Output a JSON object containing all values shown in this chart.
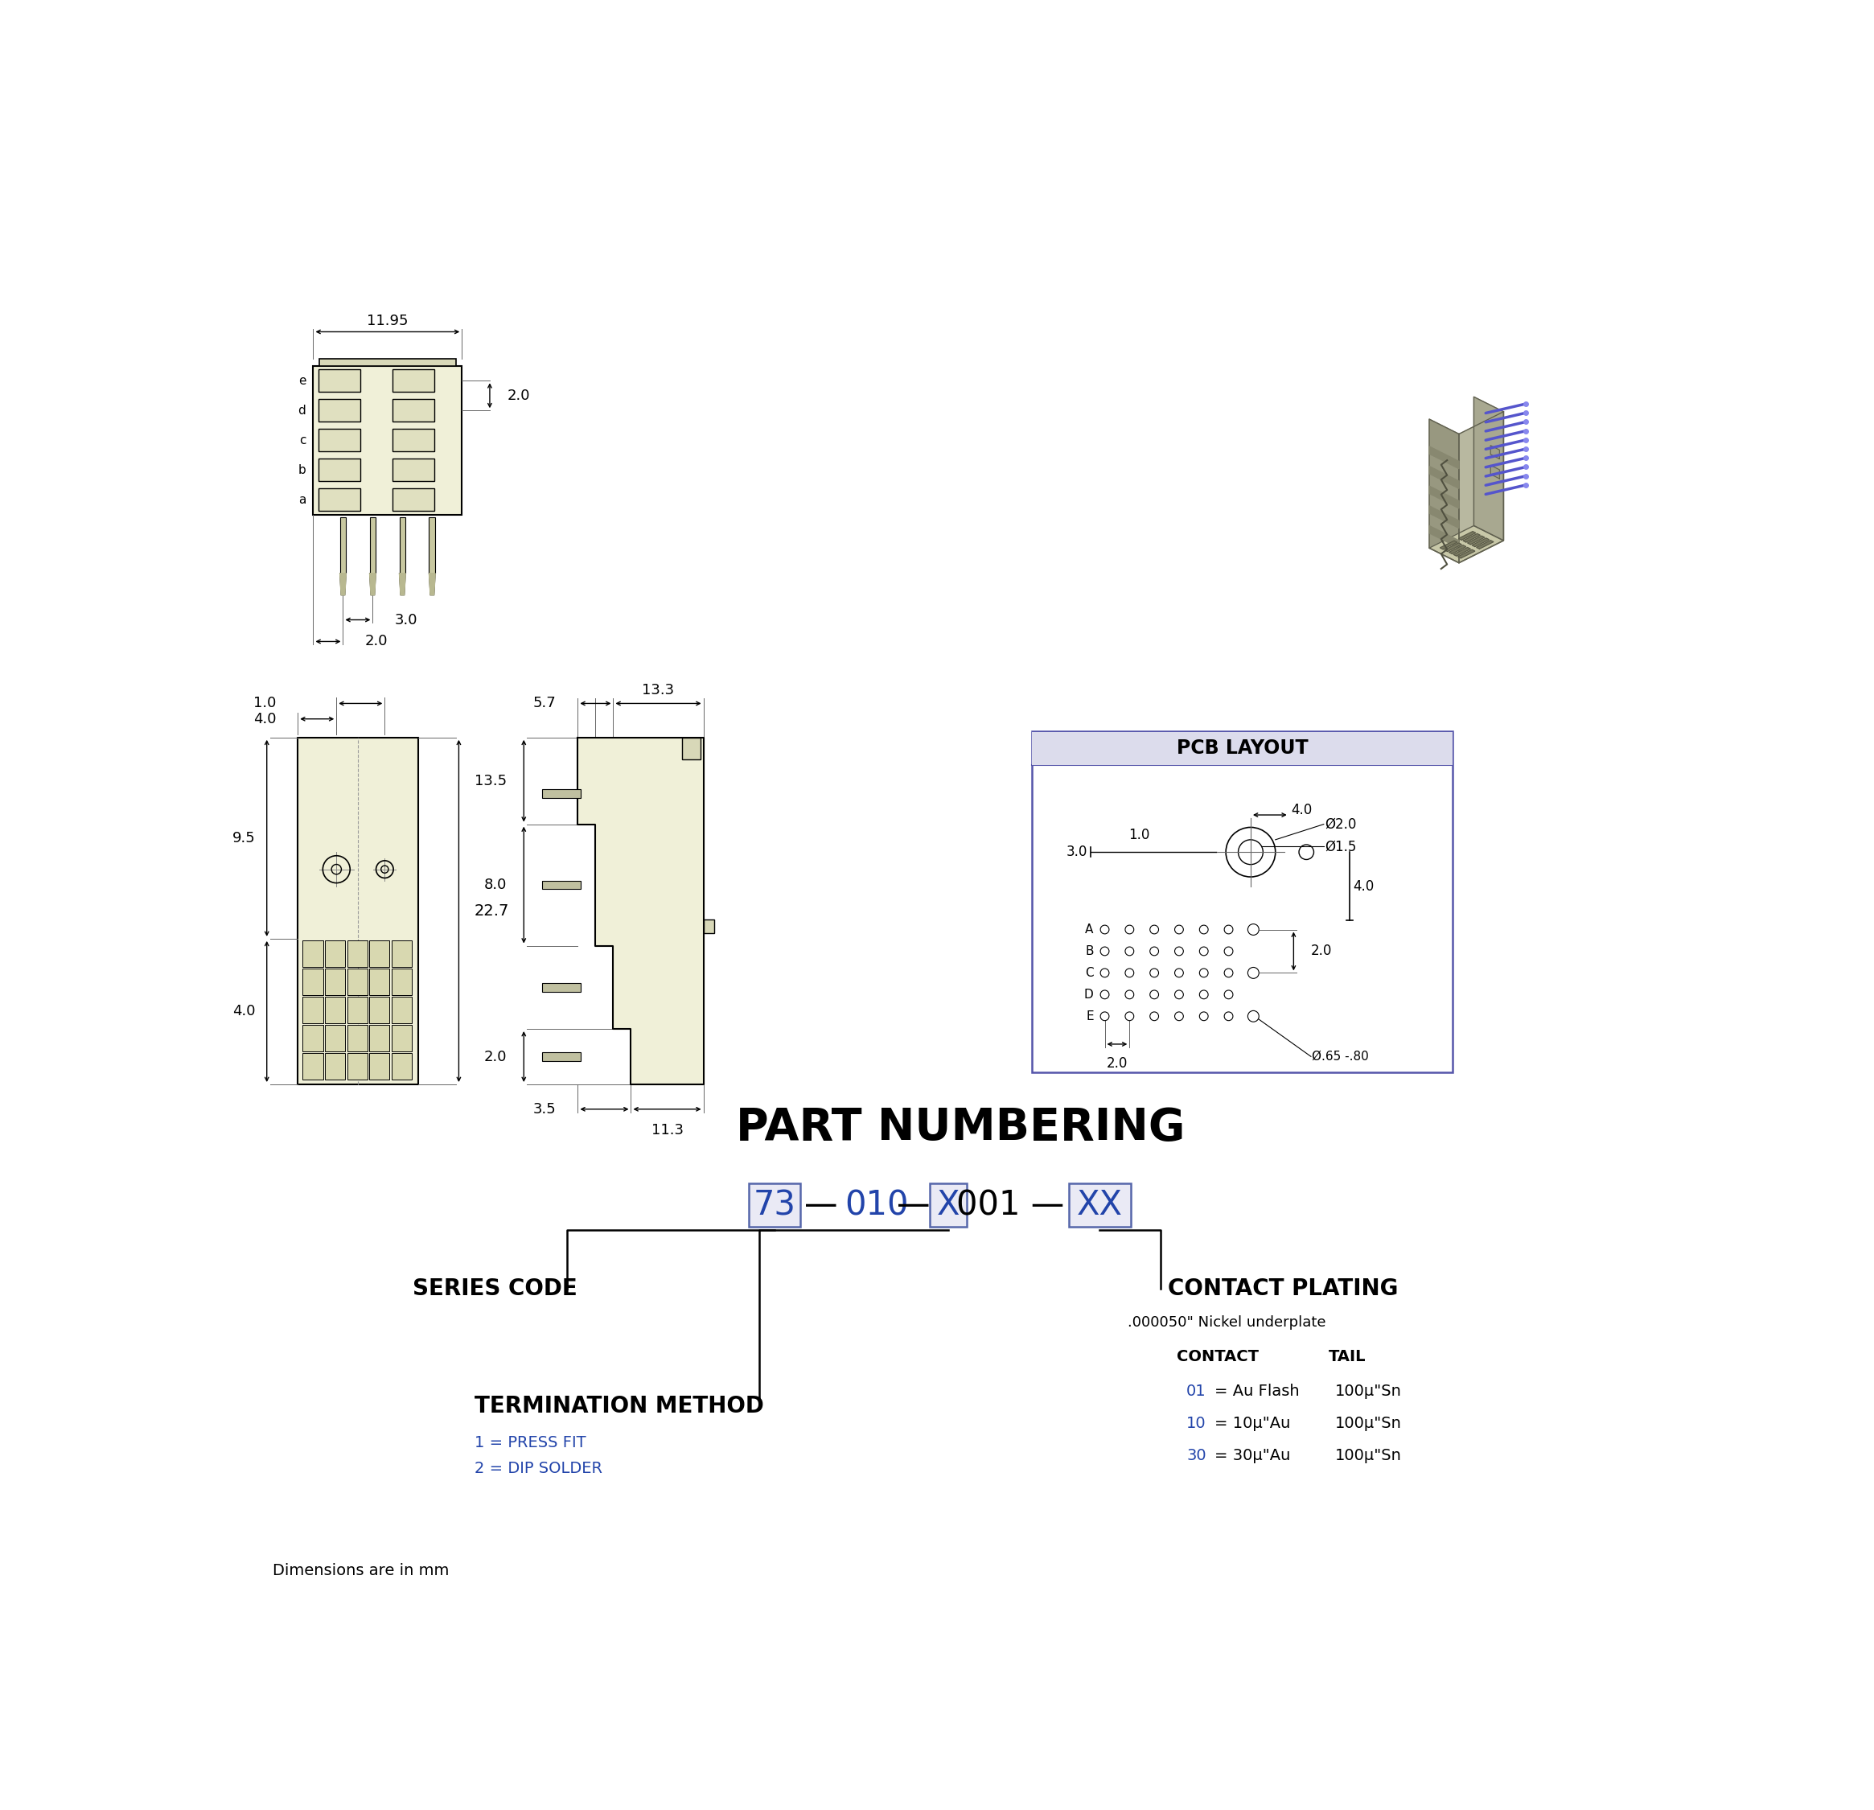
{
  "bg_color": "#ffffff",
  "line_color": "#000000",
  "blue_color": "#2244aa",
  "fill_color": "#f0f0d8",
  "fill_dark": "#c8c8a8",
  "fill_mid": "#d8d8b8",
  "title": "PART NUMBERING",
  "footer": "Dimensions are in mm",
  "labels": {
    "series_code": "SERIES CODE",
    "termination_method": "TERMINATION METHOD",
    "contact_plating": "CONTACT PLATING",
    "nickel": ".000050\" Nickel underplate",
    "contact_header": "CONTACT",
    "tail_header": "TAIL",
    "row1_num": "01",
    "row1_desc": "= Au Flash",
    "row1_tail": "100μ\"Sn",
    "row2_num": "10",
    "row2_desc": "= 10μ\"Au",
    "row2_tail": "100μ\"Sn",
    "row3_num": "30",
    "row3_desc": "= 30μ\"Au",
    "row3_tail": "100μ\"Sn",
    "term1": "1 = PRESS FIT",
    "term2": "2 = DIP SOLDER"
  },
  "dims_top": {
    "width": "11.95",
    "row_pitch": "2.0",
    "pin_pitch_a": "3.0",
    "pin_pitch_b": "2.0",
    "row_labels": [
      "e",
      "d",
      "c",
      "b",
      "a"
    ]
  },
  "dims_side": {
    "top1": "4.0",
    "top2": "1.0",
    "mid1": "9.5",
    "mid2": "4.0",
    "total": "22.7",
    "side_a": "5.7",
    "side_b": "13.3",
    "side_c": "13.5",
    "side_d": "8.0",
    "side_e": "2.0",
    "side_f": "3.5",
    "side_g": "11.3"
  },
  "pcb": {
    "title": "PCB LAYOUT",
    "d1": "4.0",
    "d2": "1.0",
    "d3": "Ø2.0",
    "d4": "3.0",
    "d5": "Ø1.5",
    "d6": "4.0",
    "d7": "2.0",
    "d8": "2.0",
    "d9": "Ø.65 -.80",
    "rows": [
      "A",
      "B",
      "C",
      "D",
      "E"
    ]
  }
}
